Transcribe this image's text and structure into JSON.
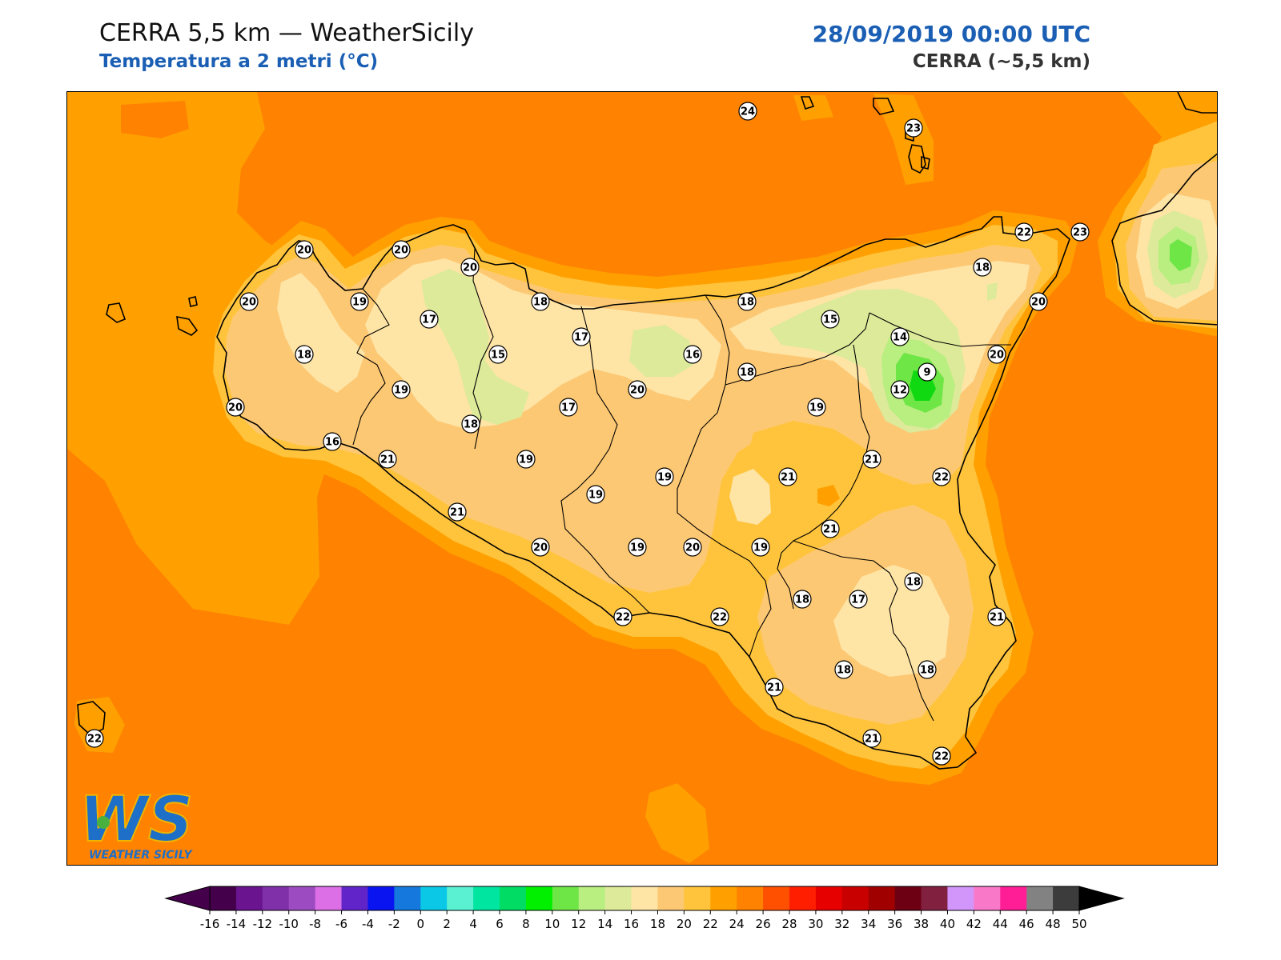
{
  "header": {
    "title_left": "CERRA 5,5 km — WeatherSicily",
    "subtitle_left": "Temperatura a 2 metri (°C)",
    "title_right": "28/09/2019 00:00 UTC",
    "subtitle_right": "CERRA (~5,5 km)"
  },
  "logo": {
    "letters": "WS",
    "text": "WEATHER SICILY"
  },
  "colors": {
    "sea": "#ff8200",
    "t22": "#ffa000",
    "t20": "#ffc43c",
    "t18": "#fdc873",
    "t16": "#fee4a5",
    "t14": "#dcea9a",
    "t12": "#b9ee80",
    "t10": "#6ee646",
    "t8": "#11d911",
    "coast": "#000000"
  },
  "stations": [
    {
      "v": "24"
    },
    {
      "v": "23"
    },
    {
      "v": "20"
    },
    {
      "v": "20"
    },
    {
      "v": "20"
    },
    {
      "v": "20"
    },
    {
      "v": "19"
    },
    {
      "v": "17"
    },
    {
      "v": "18"
    },
    {
      "v": "18"
    },
    {
      "v": "15"
    },
    {
      "v": "17"
    },
    {
      "v": "16"
    },
    {
      "v": "19"
    },
    {
      "v": "20"
    },
    {
      "v": "16"
    },
    {
      "v": "18"
    },
    {
      "v": "17"
    },
    {
      "v": "20"
    },
    {
      "v": "21"
    },
    {
      "v": "21"
    },
    {
      "v": "18"
    },
    {
      "v": "22"
    },
    {
      "v": "23"
    },
    {
      "v": "18"
    },
    {
      "v": "15"
    },
    {
      "v": "14"
    },
    {
      "v": "20"
    },
    {
      "v": "20"
    },
    {
      "v": "18"
    },
    {
      "v": "9"
    },
    {
      "v": "12"
    },
    {
      "v": "19"
    },
    {
      "v": "21"
    },
    {
      "v": "19"
    },
    {
      "v": "19"
    },
    {
      "v": "19"
    },
    {
      "v": "21"
    },
    {
      "v": "22"
    },
    {
      "v": "21"
    },
    {
      "v": "21"
    },
    {
      "v": "20"
    },
    {
      "v": "19"
    },
    {
      "v": "20"
    },
    {
      "v": "19"
    },
    {
      "v": "22"
    },
    {
      "v": "22"
    },
    {
      "v": "18"
    },
    {
      "v": "17"
    },
    {
      "v": "18"
    },
    {
      "v": "21"
    },
    {
      "v": "18"
    },
    {
      "v": "18"
    },
    {
      "v": "21"
    },
    {
      "v": "20"
    },
    {
      "v": "22"
    },
    {
      "v": "22"
    }
  ],
  "colorbar": {
    "ticks": [
      "-16",
      "-14",
      "-12",
      "-10",
      "-8",
      "-6",
      "-4",
      "-2",
      "0",
      "2",
      "4",
      "6",
      "8",
      "10",
      "12",
      "14",
      "16",
      "18",
      "20",
      "22",
      "24",
      "26",
      "28",
      "30",
      "32",
      "34",
      "36",
      "38",
      "40",
      "42",
      "44",
      "46",
      "48",
      "50"
    ],
    "colors": [
      "#44004a",
      "#6a1490",
      "#8030a8",
      "#9c4cc0",
      "#dc6ee6",
      "#6024c8",
      "#0a14f0",
      "#1478dc",
      "#0ac8e6",
      "#5af0d2",
      "#00e6a0",
      "#00dc64",
      "#00f000",
      "#6ee646",
      "#b9ee80",
      "#dcea9a",
      "#fee4a5",
      "#fdc873",
      "#ffc43c",
      "#ffa000",
      "#ff8200",
      "#ff5000",
      "#ff1e00",
      "#e60000",
      "#c80000",
      "#a00000",
      "#6e0014",
      "#822040",
      "#d296fa",
      "#fa78c8",
      "#ff1e96",
      "#828282",
      "#3c3c3c"
    ],
    "under_color": "#44004a",
    "over_color": "#000000"
  }
}
